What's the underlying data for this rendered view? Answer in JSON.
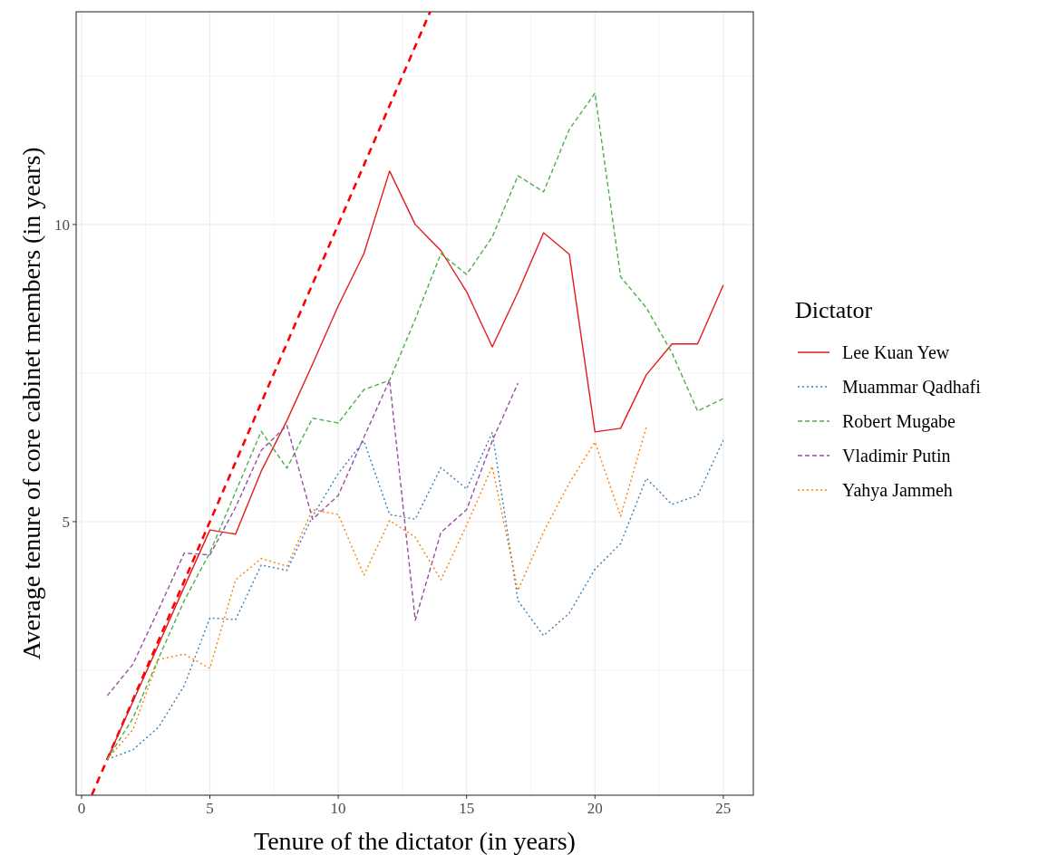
{
  "chart_data": {
    "type": "line",
    "xlabel": "Tenure of the dictator (in years)",
    "ylabel": "Average tenure of core cabinet members (in years)",
    "legend_title": "Dictator",
    "legend": "right",
    "grid": true,
    "xlim": [
      -0.21,
      26.17
    ],
    "ylim": [
      0.396,
      13.58
    ],
    "xticks": [
      0,
      {
        "value": 2.5,
        "label": null
      },
      5,
      {
        "value": 7.5,
        "label": null
      },
      10,
      {
        "value": 12.5,
        "label": null
      },
      15,
      {
        "value": 17.5,
        "label": null
      },
      20,
      {
        "value": 22.5,
        "label": null
      },
      25
    ],
    "yticks": [
      {
        "value": 2.5,
        "label": null
      },
      5,
      {
        "value": 7.5,
        "label": null
      },
      10,
      {
        "value": 12.5,
        "label": null
      }
    ],
    "x": [
      1,
      2,
      3,
      4,
      5,
      6,
      7,
      8,
      9,
      10,
      11,
      12,
      13,
      14,
      15,
      16,
      17,
      18,
      19,
      20,
      21,
      22,
      23,
      24,
      25
    ],
    "series": [
      {
        "name": "Lee Kuan Yew",
        "color": "#e41a1c",
        "line_style": "solid",
        "values": [
          1.0,
          1.97,
          2.93,
          3.9,
          4.86,
          4.79,
          5.85,
          6.7,
          7.65,
          8.63,
          9.51,
          10.9,
          10.0,
          9.56,
          8.87,
          7.94,
          8.86,
          9.86,
          9.5,
          6.51,
          6.57,
          7.47,
          7.99,
          7.99,
          8.98
        ]
      },
      {
        "name": "Muammar Qadhafi",
        "color": "#377eb8",
        "line_style": "dotted",
        "values": [
          1.0,
          1.16,
          1.54,
          2.24,
          3.38,
          3.35,
          4.27,
          4.18,
          5.09,
          5.81,
          6.36,
          5.12,
          5.04,
          5.91,
          5.55,
          6.5,
          3.67,
          3.08,
          3.46,
          4.2,
          4.63,
          5.73,
          5.29,
          5.44,
          6.37
        ]
      },
      {
        "name": "Robert Mugabe",
        "color": "#4daf4a",
        "line_style": "dashed",
        "values": [
          1.0,
          1.69,
          2.7,
          3.67,
          4.48,
          5.5,
          6.52,
          5.9,
          6.74,
          6.66,
          7.22,
          7.38,
          8.41,
          9.51,
          9.16,
          9.79,
          10.82,
          10.55,
          11.6,
          12.21,
          9.12,
          8.6,
          7.84,
          6.86,
          7.07
        ]
      },
      {
        "name": "Vladimir Putin",
        "color": "#984ea3",
        "line_style": "dashed",
        "x": [
          1,
          2,
          3,
          4,
          5,
          6,
          7,
          8,
          9,
          10,
          11,
          12,
          13,
          14,
          15,
          16,
          17
        ],
        "values": [
          2.07,
          2.6,
          3.52,
          4.47,
          4.44,
          5.24,
          6.2,
          6.62,
          5.04,
          5.44,
          6.42,
          7.38,
          3.34,
          4.82,
          5.2,
          6.36,
          7.33
        ]
      },
      {
        "name": "Yahya Jammeh",
        "color": "#ff7f00",
        "line_style": "dotted",
        "x": [
          1,
          2,
          3,
          4,
          5,
          6,
          7,
          8,
          9,
          10,
          11,
          12,
          13,
          14,
          15,
          16,
          17,
          18,
          19,
          20,
          21,
          22
        ],
        "values": [
          1.0,
          1.5,
          2.68,
          2.77,
          2.53,
          4.02,
          4.38,
          4.25,
          5.2,
          5.12,
          4.1,
          5.02,
          4.74,
          4.02,
          4.94,
          5.93,
          3.84,
          4.83,
          5.65,
          6.34,
          5.09,
          6.59
        ]
      },
      {
        "type": "line",
        "color": "#ff0000",
        "line_style": "dashed",
        "x": [
          0.4,
          13.58
        ],
        "values": [
          0.4,
          13.58
        ]
      }
    ]
  }
}
